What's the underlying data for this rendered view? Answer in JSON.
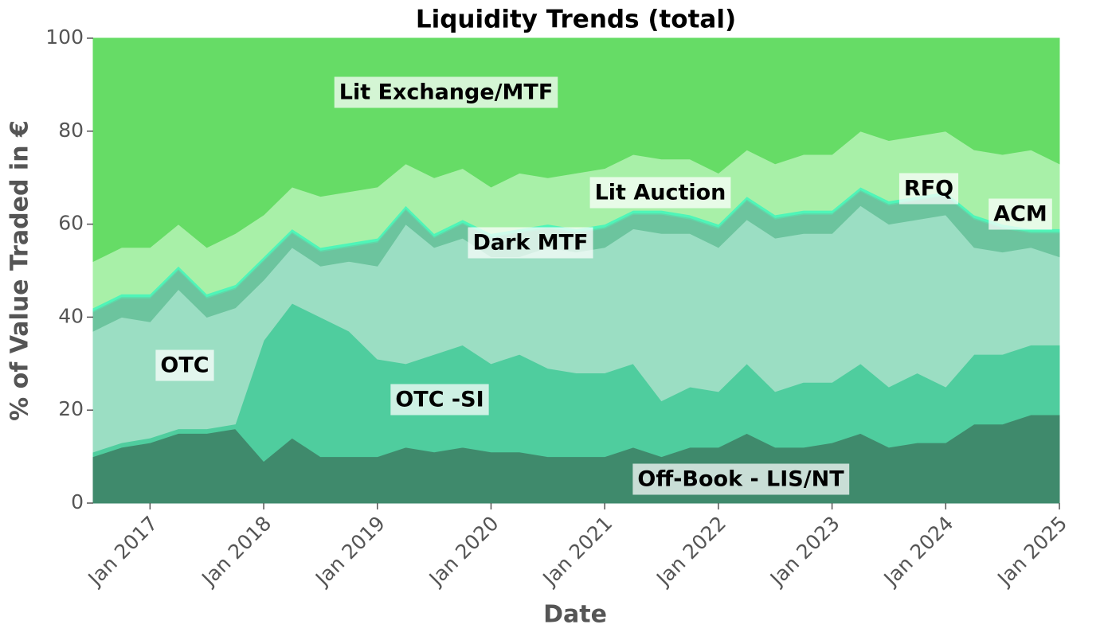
{
  "chart_data": {
    "type": "stacked-area",
    "title": "Liquidity Trends (total)",
    "x_label": "Date",
    "y_label": "% of Value Traded in €",
    "x": [
      "2016-07",
      "2016-10",
      "2017-01",
      "2017-04",
      "2017-07",
      "2017-10",
      "2018-01",
      "2018-04",
      "2018-07",
      "2018-10",
      "2019-01",
      "2019-04",
      "2019-07",
      "2019-10",
      "2020-01",
      "2020-04",
      "2020-07",
      "2020-10",
      "2021-01",
      "2021-04",
      "2021-07",
      "2021-10",
      "2022-01",
      "2022-04",
      "2022-07",
      "2022-10",
      "2023-01",
      "2023-04",
      "2023-07",
      "2023-10",
      "2024-01",
      "2024-04",
      "2024-07",
      "2024-10",
      "2025-01"
    ],
    "xlim": [
      "2016-07",
      "2025-01"
    ],
    "xticks": [
      {
        "value": "2017-01",
        "label": "Jan 2017"
      },
      {
        "value": "2018-01",
        "label": "Jan 2018"
      },
      {
        "value": "2019-01",
        "label": "Jan 2019"
      },
      {
        "value": "2020-01",
        "label": "Jan 2020"
      },
      {
        "value": "2021-01",
        "label": "Jan 2021"
      },
      {
        "value": "2022-01",
        "label": "Jan 2022"
      },
      {
        "value": "2023-01",
        "label": "Jan 2023"
      },
      {
        "value": "2024-01",
        "label": "Jan 2024"
      },
      {
        "value": "2025-01",
        "label": "Jan 2025"
      }
    ],
    "ylim": [
      0,
      100
    ],
    "yticks": [
      0,
      20,
      40,
      60,
      80,
      100
    ],
    "grid": false,
    "series": [
      {
        "name": "Off-Book - LIS/NT",
        "color": "#3f8a6c",
        "values": [
          10,
          12,
          13,
          15,
          15,
          16,
          9,
          14,
          10,
          10,
          10,
          12,
          11,
          12,
          11,
          11,
          10,
          10,
          10,
          12,
          10,
          12,
          12,
          15,
          12,
          12,
          13,
          15,
          12,
          13,
          13,
          17,
          17,
          19,
          19
        ]
      },
      {
        "name": "OTC -SI",
        "color": "#4fcd9e",
        "values": [
          1,
          1,
          1,
          1,
          1,
          1,
          26,
          29,
          30,
          27,
          21,
          18,
          21,
          22,
          19,
          21,
          19,
          18,
          18,
          18,
          12,
          13,
          12,
          15,
          12,
          14,
          13,
          15,
          13,
          15,
          12,
          15,
          15,
          15,
          15
        ]
      },
      {
        "name": "OTC",
        "color": "#9bdec3",
        "values": [
          26,
          27,
          25,
          30,
          24,
          25,
          13,
          12,
          11,
          15,
          20,
          30,
          23,
          23,
          23,
          21,
          26,
          26,
          27,
          29,
          36,
          33,
          31,
          31,
          33,
          32,
          32,
          34,
          35,
          33,
          37,
          23,
          22,
          21,
          19
        ]
      },
      {
        "name": "Dark MTF",
        "color": "#6cc49e",
        "values": [
          4.1,
          4.1,
          5.1,
          4.1,
          4.1,
          4.1,
          4.1,
          3.1,
          3.1,
          3.1,
          5.1,
          3.1,
          2.1,
          3.1,
          4.1,
          5.1,
          4.1,
          4.1,
          4.1,
          3.1,
          4.1,
          3.1,
          4.1,
          4.1,
          4.1,
          4.1,
          4.1,
          3.1,
          4.1,
          4.1,
          4.1,
          6.1,
          5.1,
          3.1,
          5.1
        ]
      },
      {
        "name": "ACM",
        "color": "#5fd8a8",
        "values": [
          0.3,
          0.3,
          0.3,
          0.3,
          0.3,
          0.3,
          0.3,
          0.3,
          0.3,
          0.3,
          0.3,
          0.3,
          0.3,
          0.3,
          0.3,
          0.3,
          0.3,
          0.3,
          0.3,
          0.3,
          0.3,
          0.3,
          0.3,
          0.3,
          0.3,
          0.3,
          0.3,
          0.3,
          0.3,
          0.3,
          0.3,
          0.3,
          0.3,
          0.3,
          0.3
        ]
      },
      {
        "name": "RFQ",
        "color": "#4ff5b8",
        "values": [
          0.6,
          0.6,
          0.6,
          0.6,
          0.6,
          0.6,
          0.6,
          0.6,
          0.6,
          0.6,
          0.6,
          0.6,
          0.6,
          0.6,
          0.6,
          0.6,
          0.6,
          0.6,
          0.6,
          0.6,
          0.6,
          0.6,
          0.6,
          0.6,
          0.6,
          0.6,
          0.6,
          0.6,
          0.6,
          0.6,
          0.6,
          0.6,
          0.6,
          0.6,
          0.6
        ]
      },
      {
        "name": "Lit Auction",
        "color": "#a8f0a8",
        "values": [
          10,
          10,
          10,
          9,
          10,
          11,
          9,
          9,
          11,
          11,
          11,
          9,
          12,
          11,
          10,
          12,
          10,
          12,
          12,
          12,
          11,
          12,
          11,
          10,
          11,
          12,
          12,
          12,
          13,
          13,
          13,
          14,
          15,
          17,
          14
        ]
      },
      {
        "name": "Lit Exchange/MTF",
        "color": "#66dc66",
        "values": [
          48,
          45,
          45,
          40,
          45,
          42,
          38,
          32,
          34,
          33,
          32,
          27,
          30,
          28,
          32,
          29,
          30,
          29,
          28,
          25,
          26,
          26,
          29,
          24,
          27,
          25,
          25,
          20,
          22,
          21,
          20,
          24,
          25,
          24,
          27
        ]
      }
    ]
  }
}
